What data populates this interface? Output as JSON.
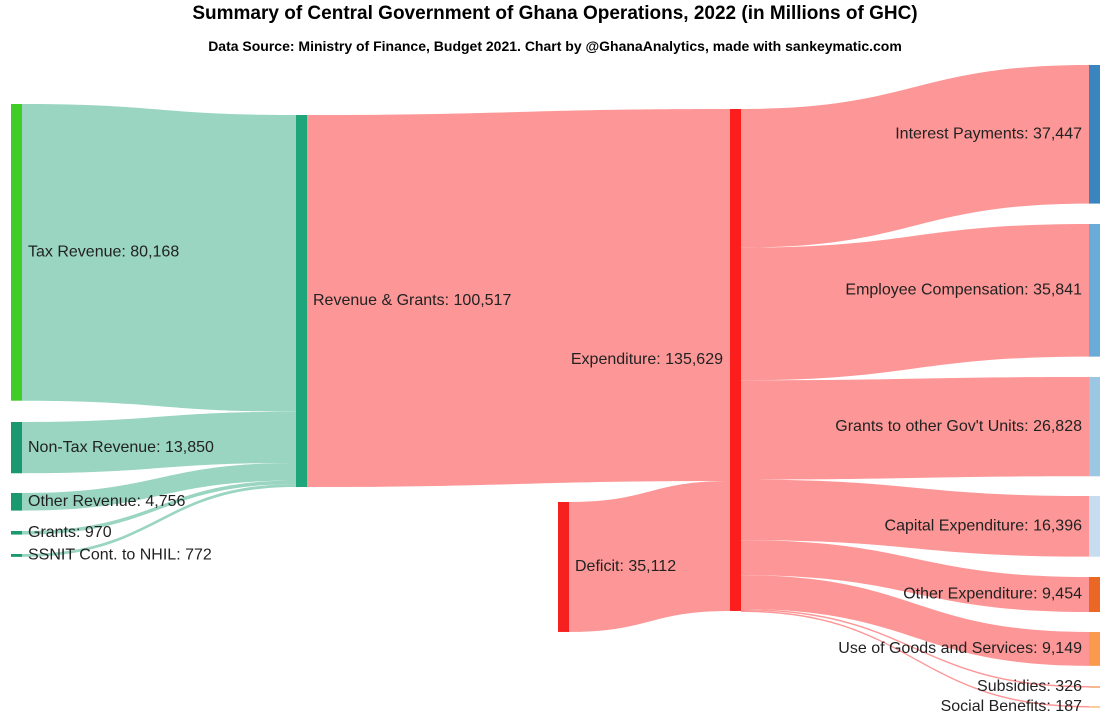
{
  "title": "Summary of Central Government of Ghana Operations, 2022 (in Millions of GHC)",
  "subtitle": "Data Source: Ministry of Finance, Budget 2021. Chart by @GhanaAnalytics, made with sankeymatic.com",
  "colors": {
    "revenue_flow": "#99d5c0",
    "expense_flow": "#fd9696",
    "tax": "#41cd27",
    "nontax": "#1a9971",
    "revenue_grants": "#1ea579",
    "expenditure": "#fc1d1d",
    "deficit": "#f62020",
    "interest": "#3a84c0",
    "employee": "#6aabd8",
    "grants_units": "#9cc7e3",
    "capex": "#c7dcee",
    "other_exp": "#ea6725",
    "goods": "#fa9a4e",
    "subsidies": "#f5b98c",
    "social": "#f9ce9e"
  },
  "chart_data": {
    "type": "sankey",
    "nodes": [
      {
        "id": "tax",
        "label": "Tax Revenue: 80,168",
        "value": 80168
      },
      {
        "id": "nontax",
        "label": "Non-Tax Revenue: 13,850",
        "value": 13850
      },
      {
        "id": "other_rev",
        "label": "Other Revenue: 4,756",
        "value": 4756
      },
      {
        "id": "grants",
        "label": "Grants: 970",
        "value": 970
      },
      {
        "id": "ssnit",
        "label": "SSNIT Cont. to NHIL: 772",
        "value": 772
      },
      {
        "id": "rev_grants",
        "label": "Revenue & Grants: 100,517",
        "value": 100517
      },
      {
        "id": "deficit",
        "label": "Deficit: 35,112",
        "value": 35112
      },
      {
        "id": "expenditure",
        "label": "Expenditure: 135,629",
        "value": 135629
      },
      {
        "id": "interest",
        "label": "Interest Payments: 37,447",
        "value": 37447
      },
      {
        "id": "employee",
        "label": "Employee Compensation: 35,841",
        "value": 35841
      },
      {
        "id": "grants_units",
        "label": "Grants to other Gov't Units: 26,828",
        "value": 26828
      },
      {
        "id": "capex",
        "label": "Capital Expenditure: 16,396",
        "value": 16396
      },
      {
        "id": "other_exp",
        "label": "Other Expenditure: 9,454",
        "value": 9454
      },
      {
        "id": "goods",
        "label": "Use of Goods and Services: 9,149",
        "value": 9149
      },
      {
        "id": "subsidies",
        "label": "Subsidies: 326",
        "value": 326
      },
      {
        "id": "social",
        "label": "Social Benefits: 187",
        "value": 187
      }
    ],
    "links": [
      {
        "source": "tax",
        "target": "rev_grants",
        "value": 80168
      },
      {
        "source": "nontax",
        "target": "rev_grants",
        "value": 13850
      },
      {
        "source": "other_rev",
        "target": "rev_grants",
        "value": 4756
      },
      {
        "source": "grants",
        "target": "rev_grants",
        "value": 970
      },
      {
        "source": "ssnit",
        "target": "rev_grants",
        "value": 772
      },
      {
        "source": "rev_grants",
        "target": "expenditure",
        "value": 100517
      },
      {
        "source": "deficit",
        "target": "expenditure",
        "value": 35112
      },
      {
        "source": "expenditure",
        "target": "interest",
        "value": 37447
      },
      {
        "source": "expenditure",
        "target": "employee",
        "value": 35841
      },
      {
        "source": "expenditure",
        "target": "grants_units",
        "value": 26828
      },
      {
        "source": "expenditure",
        "target": "capex",
        "value": 16396
      },
      {
        "source": "expenditure",
        "target": "other_exp",
        "value": 9454
      },
      {
        "source": "expenditure",
        "target": "goods",
        "value": 9149
      },
      {
        "source": "expenditure",
        "target": "subsidies",
        "value": 326
      },
      {
        "source": "expenditure",
        "target": "social",
        "value": 187
      }
    ]
  }
}
